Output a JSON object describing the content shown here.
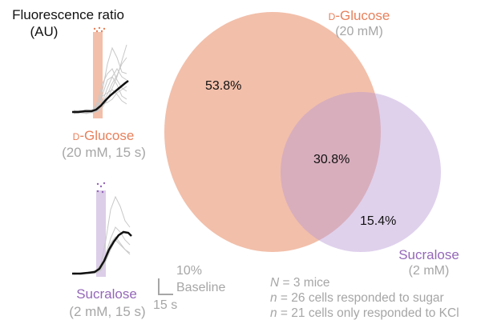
{
  "figure": {
    "ylabel_line1": "Fluorescence ratio",
    "ylabel_line2": "(AU)",
    "colors": {
      "glucose": "#e8805b",
      "glucose_fill": "#f0b49b",
      "sucralose": "#9467b8",
      "sucralose_fill": "#d3c0e2",
      "gray_text": "#a6a6a6",
      "trace_gray": "#c8c8c8",
      "mean_trace": "#111111"
    }
  },
  "panel_glucose": {
    "name_prefix": "d",
    "name_rest": "-Glucose",
    "condition": "(20 mM, 15 s)",
    "marker": "**"
  },
  "panel_sucralose": {
    "name": "Sucralose",
    "condition": "(2 mM, 15 s)",
    "marker": "**"
  },
  "scalebar": {
    "y_value": "10%",
    "y_label": "Baseline",
    "x_value": "15 s"
  },
  "venn": {
    "set_a_prefix": "d",
    "set_a_rest": "-Glucose",
    "set_a_conc": "(20 mM)",
    "set_b_name": "Sucralose",
    "set_b_conc": "(2 mM)",
    "only_a": "53.8%",
    "both": "30.8%",
    "only_b": "15.4%"
  },
  "stats": {
    "line1_var": "N",
    "line1_rest": " = 3 mice",
    "line2_var": "n",
    "line2_rest": " = 26 cells responded to sugar",
    "line3_var": "n",
    "line3_rest": " = 21 cells only responded to KCl"
  },
  "chart_data": {
    "type": "venn",
    "title": "",
    "sets": [
      {
        "name": "D-Glucose (20 mM)",
        "only_percent": 53.8
      },
      {
        "name": "Sucralose (2 mM)",
        "only_percent": 15.4
      }
    ],
    "overlap_percent": 30.8,
    "annotations": [
      "N = 3 mice",
      "n = 26 cells responded to sugar",
      "n = 21 cells only responded to KCl"
    ]
  }
}
